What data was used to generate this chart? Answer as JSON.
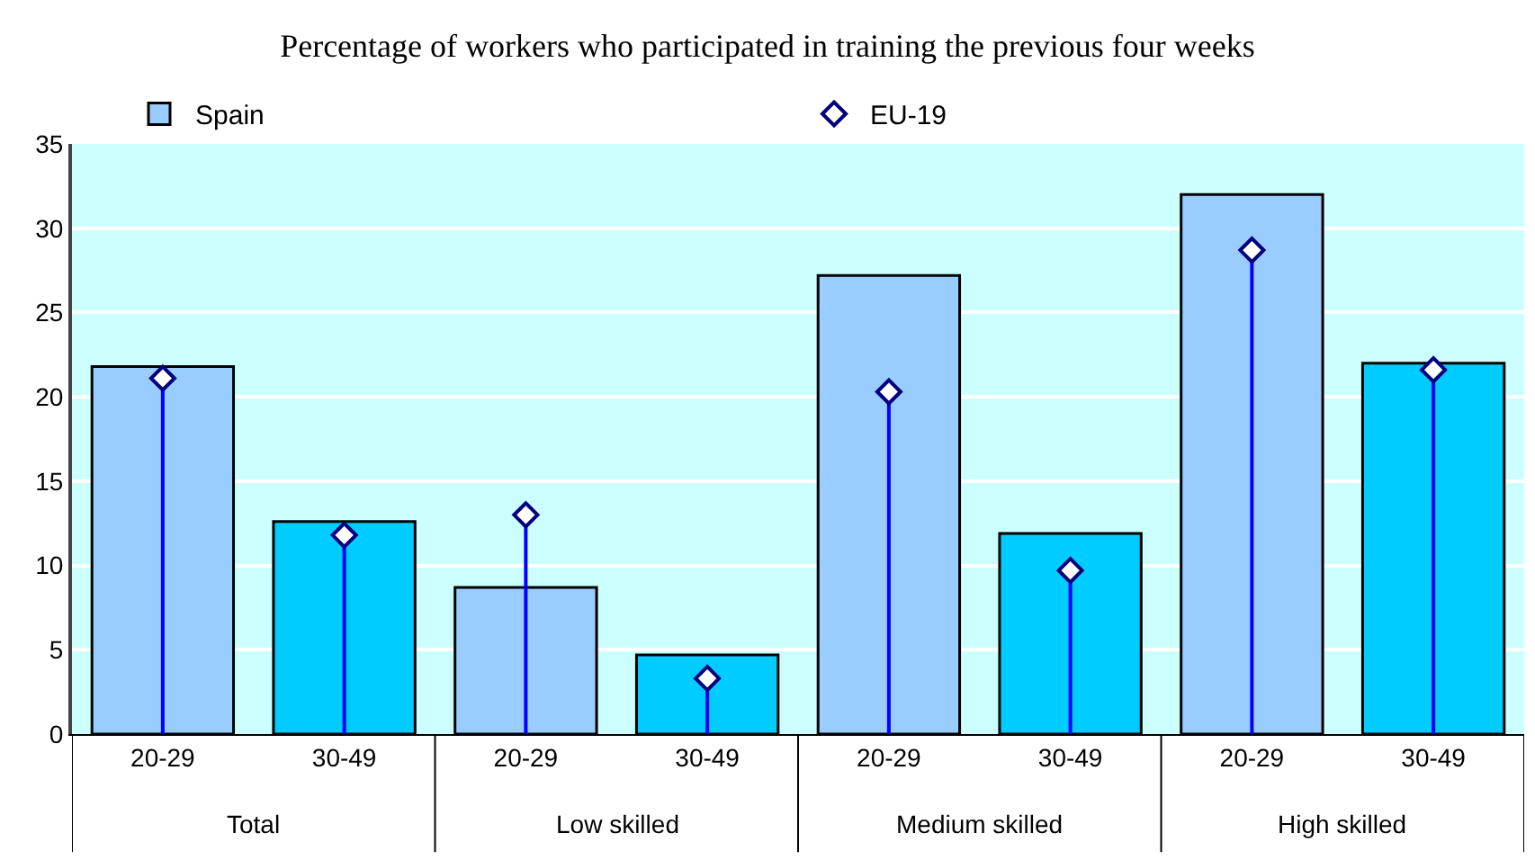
{
  "chart_data": {
    "type": "bar",
    "title": "Percentage of workers who participated in training the previous four weeks",
    "categories": [
      "20-29",
      "30-49",
      "20-29",
      "30-49",
      "20-29",
      "30-49",
      "20-29",
      "30-49"
    ],
    "annotations": [
      "Total",
      "Low skilled",
      "Medium skilled",
      "High skilled"
    ],
    "series": [
      {
        "name": "Spain",
        "colors": [
          "#99ccff",
          "#00ccff",
          "#99ccff",
          "#00ccff",
          "#99ccff",
          "#00ccff",
          "#99ccff",
          "#00ccff"
        ],
        "values": [
          21.8,
          12.6,
          8.7,
          4.7,
          27.2,
          11.9,
          32.0,
          22.0
        ]
      },
      {
        "name": "EU-19",
        "type": "lollipop",
        "color": "#ffffff",
        "marker": "diamond",
        "values": [
          21.1,
          11.8,
          13.0,
          3.3,
          20.3,
          9.7,
          28.7,
          21.6
        ]
      }
    ],
    "ylim": [
      0,
      35
    ],
    "yticks": [
      0,
      5,
      10,
      15,
      20,
      25,
      30,
      35
    ],
    "grid": "y",
    "legend": "top"
  }
}
